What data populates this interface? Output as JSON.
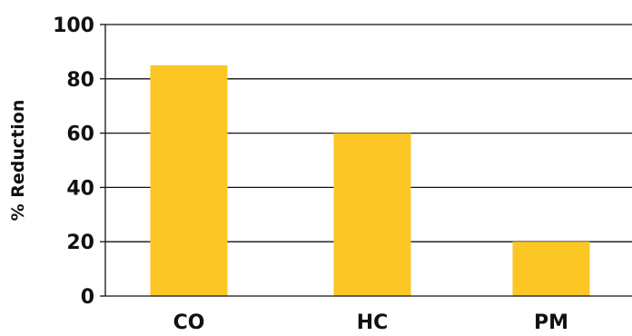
{
  "chart_data": {
    "type": "bar",
    "categories": [
      "CO",
      "HC",
      "PM"
    ],
    "values": [
      85,
      60,
      20
    ],
    "title": "",
    "xlabel": "",
    "ylabel": "% Reduction",
    "ylim": [
      0,
      100
    ],
    "yticks": [
      0,
      20,
      40,
      60,
      80,
      100
    ],
    "grid": true,
    "bar_color": "#FCC624",
    "grid_color": "#111111",
    "text_color": "#111111"
  }
}
